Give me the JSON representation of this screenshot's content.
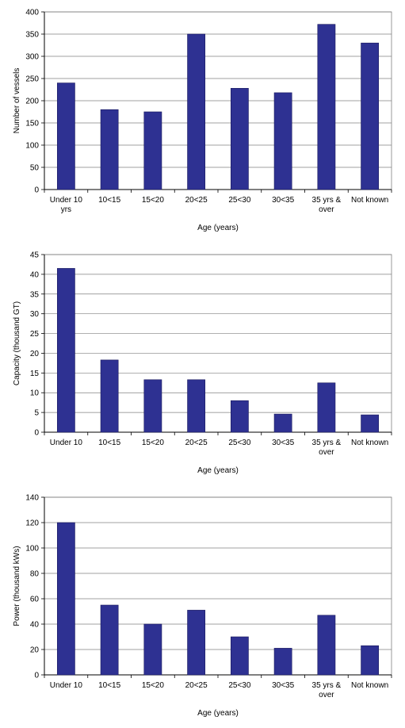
{
  "chart_data": [
    {
      "type": "bar",
      "categories": [
        [
          "Under 10",
          "yrs"
        ],
        [
          "10<15"
        ],
        [
          "15<20"
        ],
        [
          "20<25"
        ],
        [
          "25<30"
        ],
        [
          "30<35"
        ],
        [
          "35 yrs &",
          "over"
        ],
        [
          "Not known"
        ]
      ],
      "values": [
        240,
        180,
        175,
        350,
        228,
        218,
        372,
        330
      ],
      "xlabel": "Age (years)",
      "ylabel": "Number of vessels",
      "ylim": [
        0,
        400
      ],
      "yticks": [
        0,
        50,
        100,
        150,
        200,
        250,
        300,
        350,
        400
      ],
      "bar_color": "#2e3192",
      "grid": true
    },
    {
      "type": "bar",
      "categories": [
        [
          "Under 10"
        ],
        [
          "10<15"
        ],
        [
          "15<20"
        ],
        [
          "20<25"
        ],
        [
          "25<30"
        ],
        [
          "30<35"
        ],
        [
          "35 yrs &",
          "over"
        ],
        [
          "Not known"
        ]
      ],
      "values": [
        41.5,
        18.3,
        13.3,
        13.3,
        8.0,
        4.6,
        12.5,
        4.4
      ],
      "xlabel": "Age (years)",
      "ylabel": "Capacity (thousand GT)",
      "ylim": [
        0,
        45
      ],
      "yticks": [
        0,
        5,
        10,
        15,
        20,
        25,
        30,
        35,
        40,
        45
      ],
      "bar_color": "#2e3192",
      "grid": true
    },
    {
      "type": "bar",
      "categories": [
        [
          "Under 10"
        ],
        [
          "10<15"
        ],
        [
          "15<20"
        ],
        [
          "20<25"
        ],
        [
          "25<30"
        ],
        [
          "30<35"
        ],
        [
          "35 yrs &",
          "over"
        ],
        [
          "Not known"
        ]
      ],
      "values": [
        120,
        55,
        40,
        51,
        30,
        21,
        47,
        23
      ],
      "xlabel": "Age (years)",
      "ylabel": "Power (thousand kWs)",
      "ylim": [
        0,
        140
      ],
      "yticks": [
        0,
        20,
        40,
        60,
        80,
        100,
        120,
        140
      ],
      "bar_color": "#2e3192",
      "grid": true
    }
  ]
}
